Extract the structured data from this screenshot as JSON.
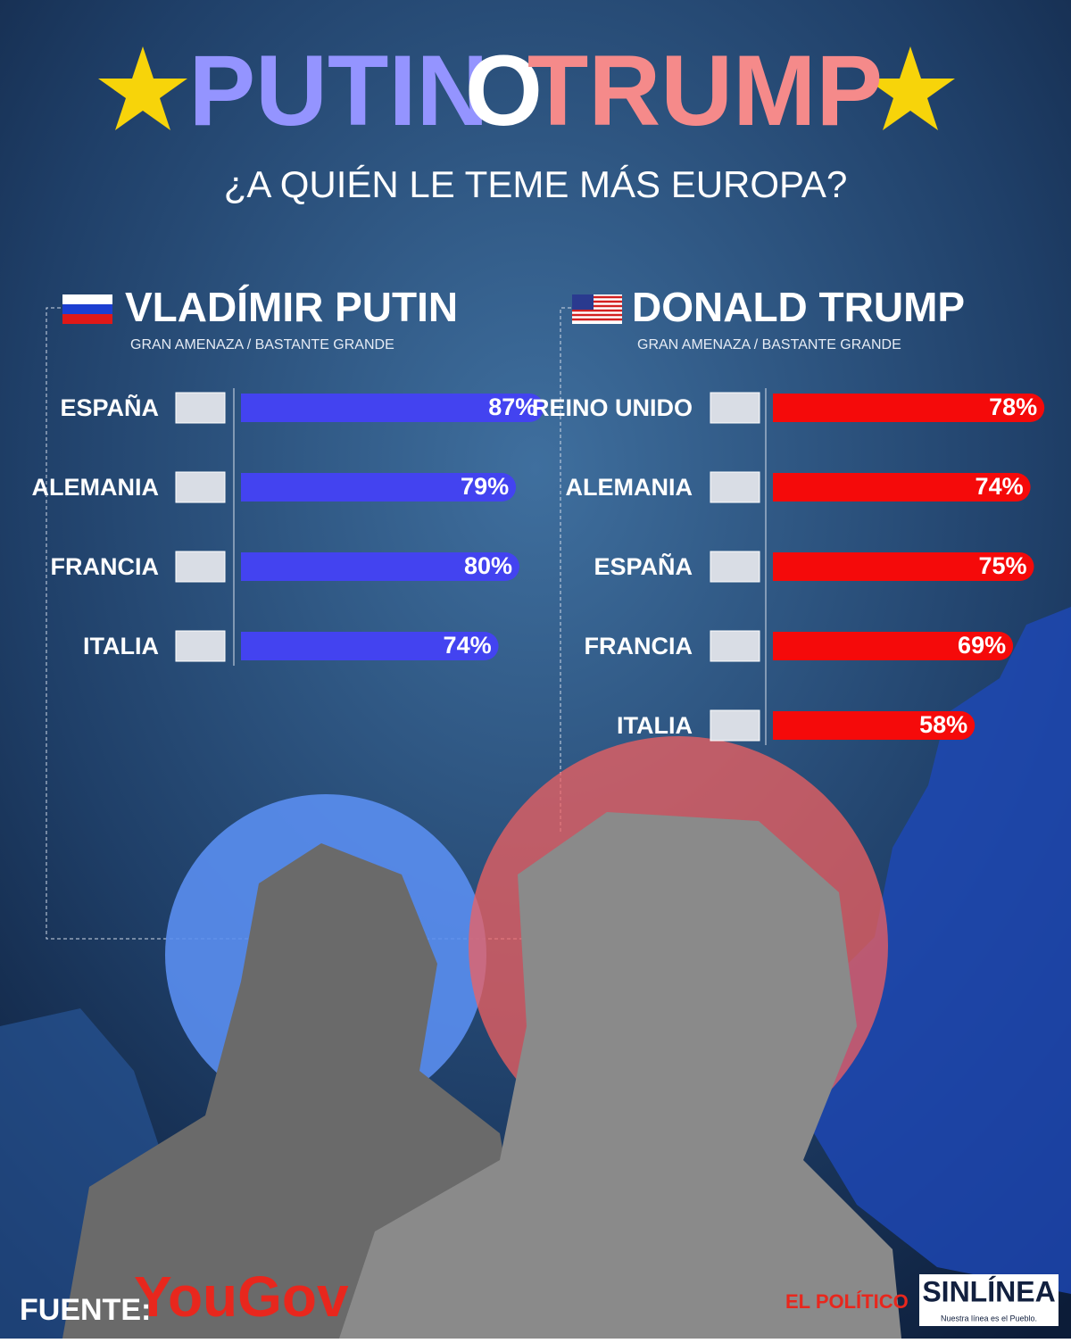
{
  "header": {
    "title_parts": [
      "PUTIN",
      "O",
      "TRUMP"
    ],
    "subtitle": "¿A QUIÉN LE TEME MÁS EUROPA?"
  },
  "chart_data": [
    {
      "type": "bar",
      "orientation": "horizontal",
      "title": "VLADÍMIR PUTIN",
      "subtitle": "GRAN AMENAZA / BASTANTE GRANDE",
      "categories": [
        "ESPAÑA",
        "ALEMANIA",
        "FRANCIA",
        "ITALIA"
      ],
      "values": [
        87,
        79,
        80,
        74
      ],
      "value_labels": [
        "87%",
        "79%",
        "80%",
        "74%"
      ],
      "color": "#4343f0"
    },
    {
      "type": "bar",
      "orientation": "horizontal",
      "title": "DONALD TRUMP",
      "subtitle": "GRAN AMENAZA / BASTANTE GRANDE",
      "categories": [
        "REINO UNIDO",
        "ALEMANIA",
        "ESPAÑA",
        "FRANCIA",
        "ITALIA"
      ],
      "values": [
        78,
        74,
        75,
        69,
        58
      ],
      "value_labels": [
        "78%",
        "74%",
        "75%",
        "69%",
        "58%"
      ],
      "color": "#f50a0a"
    }
  ],
  "footer": {
    "source_label": "FUENTE:",
    "source": "YouGov",
    "logo_left": "EL POLÍTICO",
    "logo_right": "SINLÍNEA",
    "tagline": "Nuestra línea es el Pueblo."
  }
}
